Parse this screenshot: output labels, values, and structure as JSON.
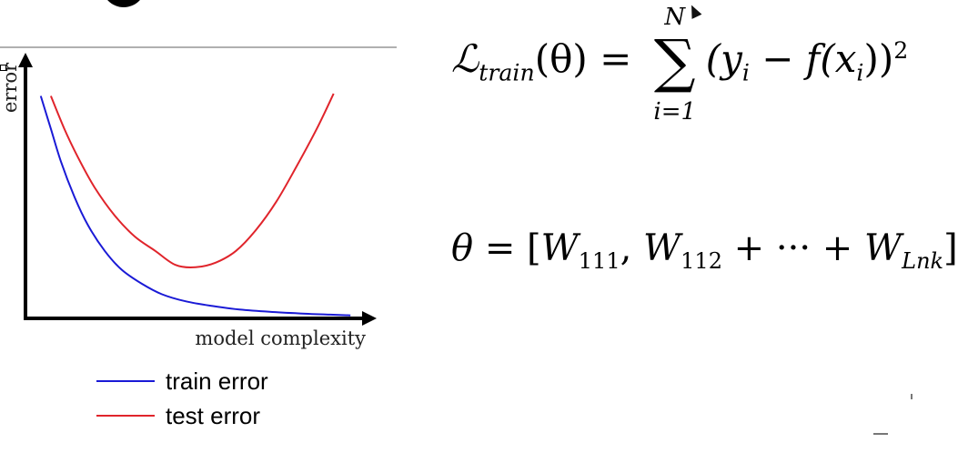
{
  "equations": {
    "loss": {
      "lhs_symbol": "ℒ",
      "lhs_subscript": "train",
      "lhs_arg": "(θ)",
      "equals": "=",
      "sum_upper": "N",
      "sum_lower": "i=1",
      "body": "(y",
      "body_sub1": "i",
      "body_mid": " − f(x",
      "body_sub2": "i",
      "body_end": "))",
      "power": "2"
    },
    "theta": {
      "lhs": "θ",
      "equals": "=",
      "open": "[",
      "term1": "W",
      "term1_sub": "111",
      "sep1": ", ",
      "term2": "W",
      "term2_sub": "112",
      "mid": " + ··· + ",
      "term3": "W",
      "term3_sub": "Lnk",
      "close": "]"
    }
  },
  "chart_data": {
    "type": "line",
    "xlabel": "model complexity",
    "ylabel": "error",
    "xlim": [
      0,
      1
    ],
    "ylim": [
      0,
      1
    ],
    "grid": false,
    "legend_position": "bottom-left",
    "series": [
      {
        "name": "train error",
        "color": "#1a1ad6",
        "x": [
          0.04,
          0.07,
          0.1,
          0.14,
          0.18,
          0.23,
          0.28,
          0.34,
          0.4,
          0.47,
          0.55,
          0.63,
          0.72,
          0.81,
          0.9,
          0.96
        ],
        "y": [
          0.94,
          0.8,
          0.66,
          0.51,
          0.39,
          0.28,
          0.2,
          0.14,
          0.095,
          0.065,
          0.045,
          0.03,
          0.02,
          0.013,
          0.008,
          0.005
        ]
      },
      {
        "name": "test error",
        "color": "#e0242b",
        "x": [
          0.07,
          0.11,
          0.15,
          0.2,
          0.26,
          0.32,
          0.38,
          0.44,
          0.5,
          0.56,
          0.62,
          0.68,
          0.74,
          0.8,
          0.86,
          0.91
        ],
        "y": [
          0.94,
          0.8,
          0.68,
          0.55,
          0.43,
          0.34,
          0.28,
          0.22,
          0.21,
          0.23,
          0.28,
          0.37,
          0.49,
          0.64,
          0.8,
          0.95
        ]
      }
    ]
  }
}
